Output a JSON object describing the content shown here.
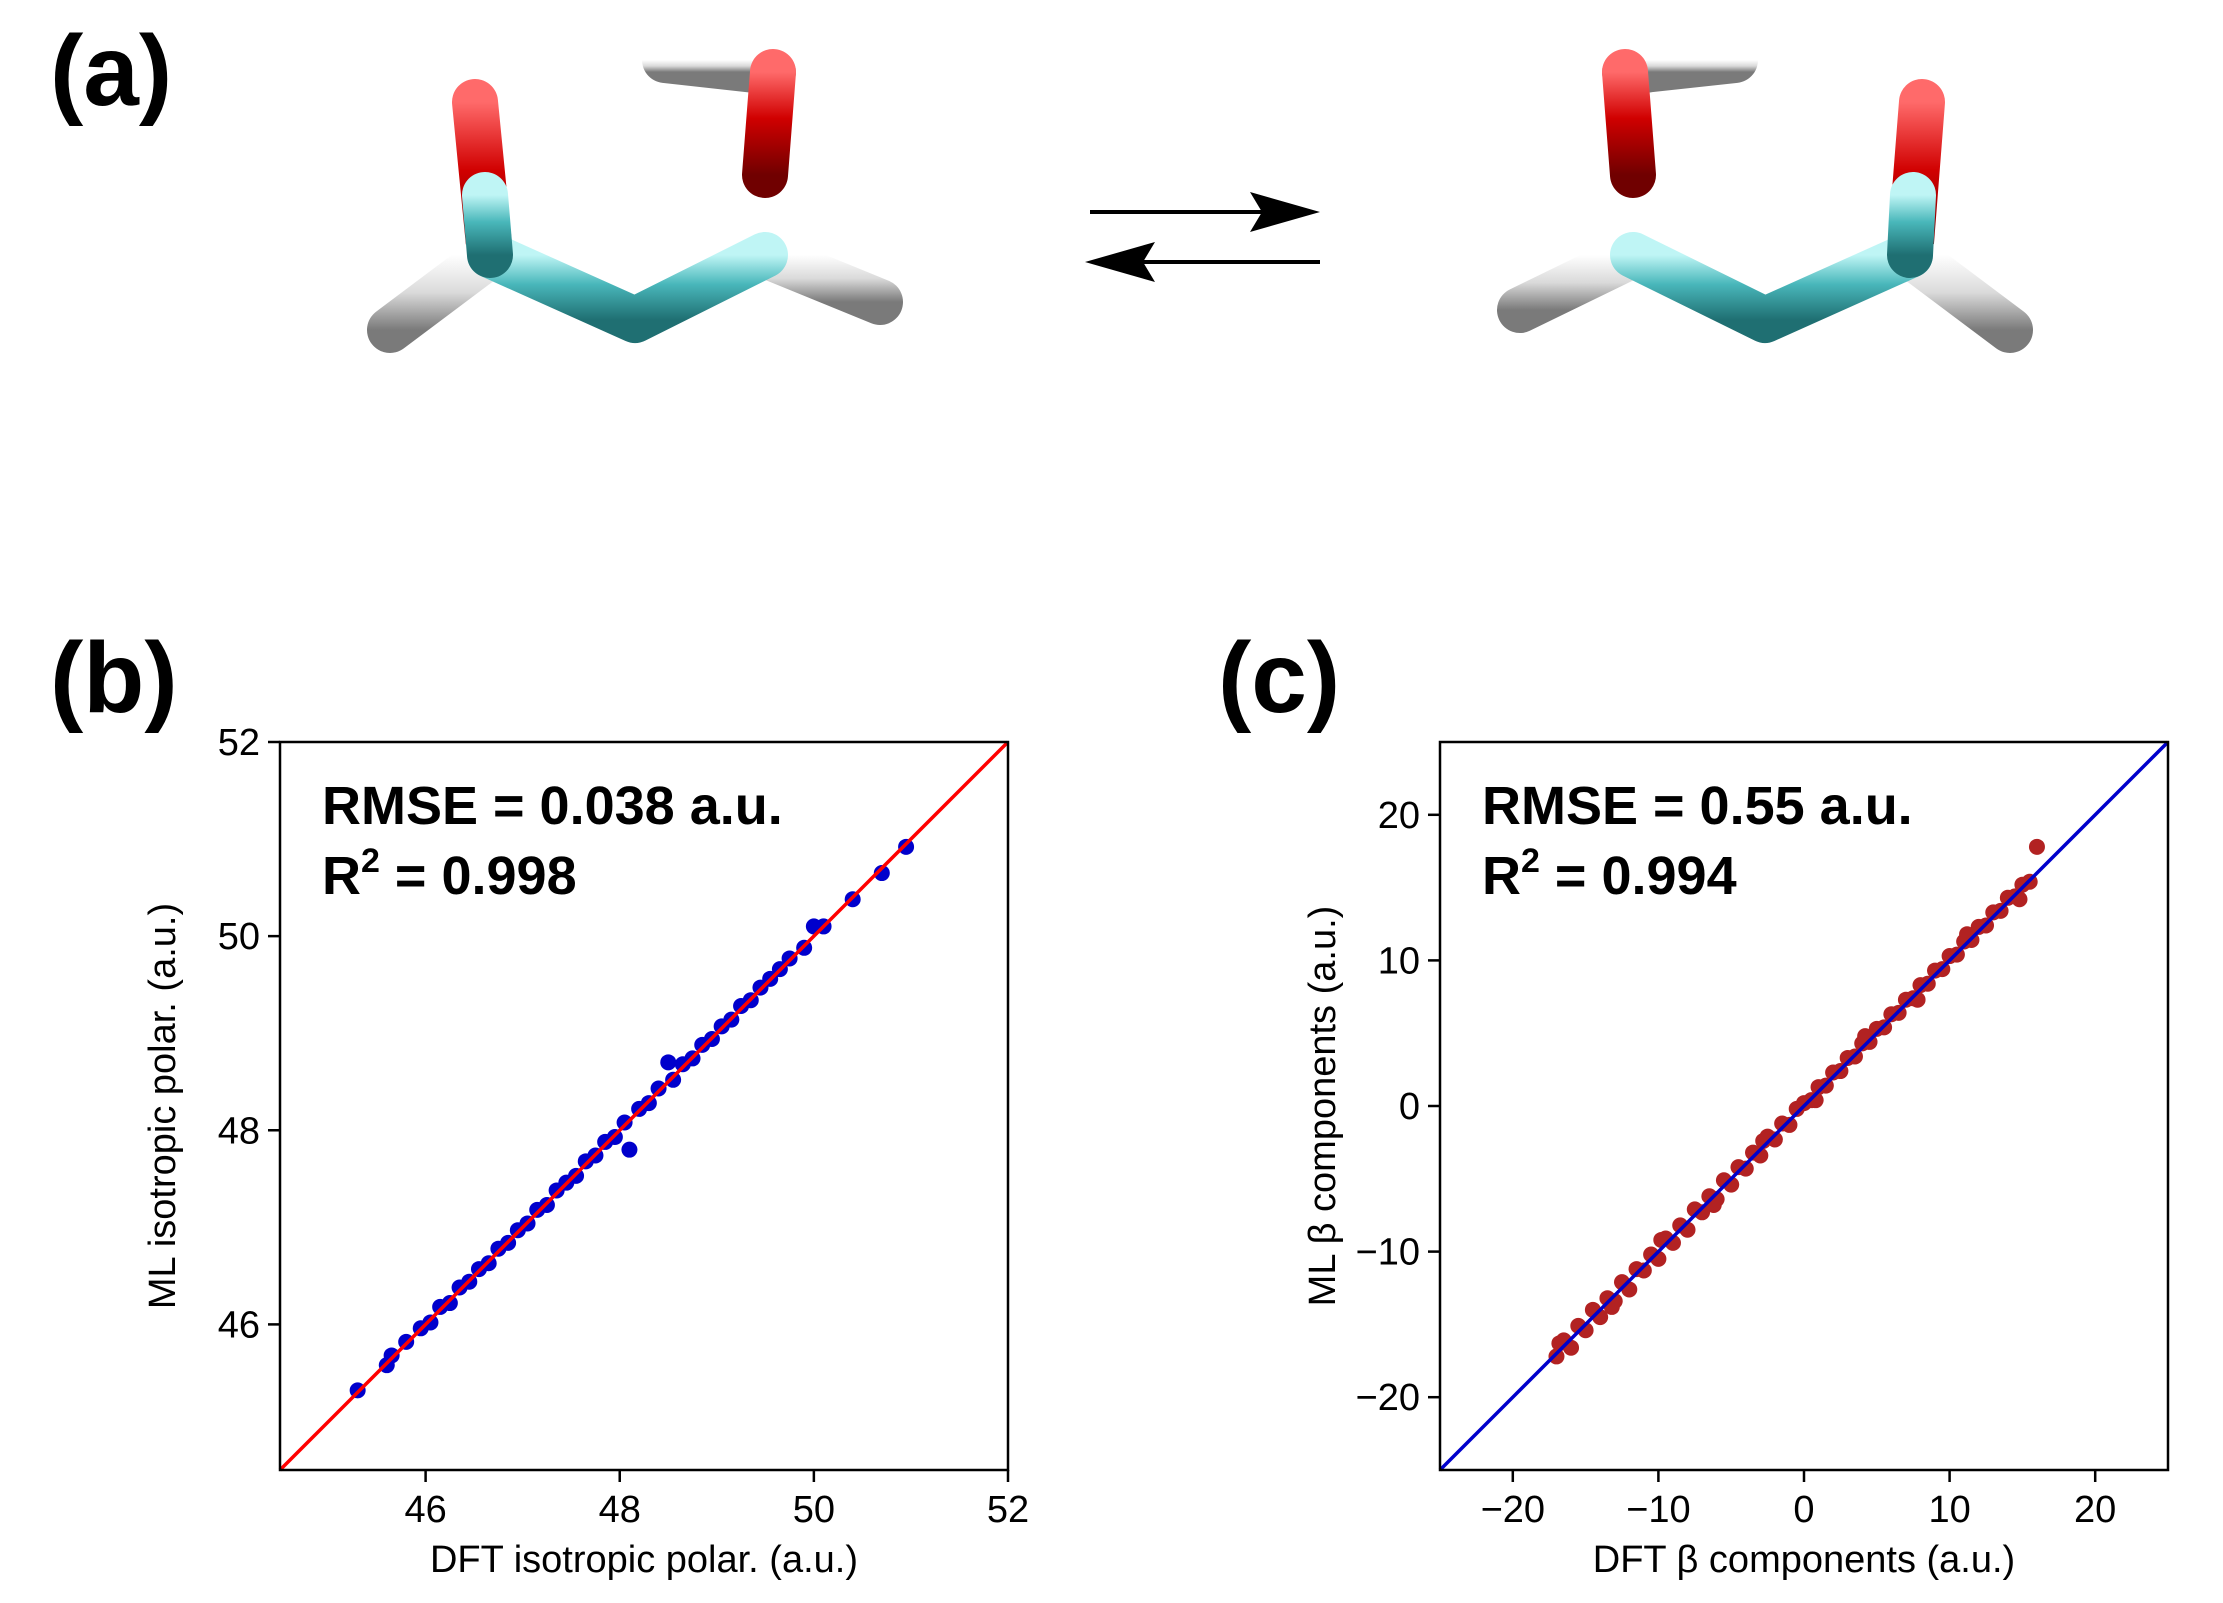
{
  "panels": {
    "a": {
      "label": "(a)"
    },
    "b": {
      "label": "(b)"
    },
    "c": {
      "label": "(c)"
    }
  },
  "molecule_colors": {
    "carbon": "#3fb3b6",
    "oxygen": "#d00000",
    "hydrogen": "#e6e6e6"
  },
  "chart_data": [
    {
      "id": "b",
      "type": "scatter",
      "xlabel": "DFT isotropic polar. (a.u.)",
      "ylabel": "ML isotropic polar. (a.u.)",
      "xlim": [
        44.5,
        52
      ],
      "ylim": [
        44.5,
        52
      ],
      "xticks": [
        46,
        48,
        50,
        52
      ],
      "yticks": [
        46,
        48,
        50,
        52
      ],
      "point_color": "#0000cc",
      "line_color": "#ff0000",
      "rmse_text": "RMSE = 0.038 a.u.",
      "r2_prefix": "R",
      "r2_sup": "2",
      "r2_suffix": " = 0.998",
      "points": [
        [
          45.3,
          45.32
        ],
        [
          45.6,
          45.58
        ],
        [
          45.65,
          45.68
        ],
        [
          45.8,
          45.82
        ],
        [
          45.95,
          45.96
        ],
        [
          46.05,
          46.02
        ],
        [
          46.15,
          46.18
        ],
        [
          46.25,
          46.22
        ],
        [
          46.35,
          46.38
        ],
        [
          46.45,
          46.44
        ],
        [
          46.55,
          46.57
        ],
        [
          46.65,
          46.63
        ],
        [
          46.75,
          46.78
        ],
        [
          46.85,
          46.84
        ],
        [
          46.95,
          46.97
        ],
        [
          47.05,
          47.04
        ],
        [
          47.15,
          47.18
        ],
        [
          47.25,
          47.23
        ],
        [
          47.35,
          47.38
        ],
        [
          47.45,
          47.46
        ],
        [
          47.55,
          47.53
        ],
        [
          47.65,
          47.68
        ],
        [
          47.75,
          47.74
        ],
        [
          47.85,
          47.88
        ],
        [
          47.95,
          47.93
        ],
        [
          48.05,
          48.08
        ],
        [
          48.1,
          47.8
        ],
        [
          48.2,
          48.22
        ],
        [
          48.3,
          48.28
        ],
        [
          48.4,
          48.43
        ],
        [
          48.5,
          48.7
        ],
        [
          48.55,
          48.52
        ],
        [
          48.65,
          48.68
        ],
        [
          48.75,
          48.74
        ],
        [
          48.85,
          48.88
        ],
        [
          48.95,
          48.94
        ],
        [
          49.05,
          49.07
        ],
        [
          49.15,
          49.14
        ],
        [
          49.25,
          49.28
        ],
        [
          49.35,
          49.34
        ],
        [
          49.45,
          49.47
        ],
        [
          49.55,
          49.56
        ],
        [
          49.65,
          49.66
        ],
        [
          49.75,
          49.77
        ],
        [
          49.9,
          49.88
        ],
        [
          50.0,
          50.1
        ],
        [
          50.1,
          50.1
        ],
        [
          50.4,
          50.38
        ],
        [
          50.7,
          50.65
        ],
        [
          50.95,
          50.92
        ]
      ]
    },
    {
      "id": "c",
      "type": "scatter",
      "xlabel": "DFT β components (a.u.)",
      "ylabel": "ML β components (a.u.)",
      "xlim": [
        -25,
        25
      ],
      "ylim": [
        -25,
        25
      ],
      "xticks": [
        -20,
        -10,
        0,
        10,
        20
      ],
      "yticks": [
        -20,
        -10,
        0,
        10,
        20
      ],
      "xtick_labels": [
        "−20",
        "−10",
        "0",
        "10",
        "20"
      ],
      "ytick_labels": [
        "−20",
        "−10",
        "0",
        "10",
        "20"
      ],
      "point_color": "#b22222",
      "line_color": "#0000cc",
      "rmse_text": "RMSE = 0.55 a.u.",
      "r2_prefix": "R",
      "r2_sup": "2",
      "r2_suffix": " = 0.994",
      "points": [
        [
          -17,
          -17.2
        ],
        [
          -16.5,
          -16.1
        ],
        [
          -16,
          -16.6
        ],
        [
          -15.5,
          -15.1
        ],
        [
          -15,
          -15.4
        ],
        [
          -14.5,
          -14.0
        ],
        [
          -14,
          -14.5
        ],
        [
          -13.5,
          -13.2
        ],
        [
          -13,
          -13.4
        ],
        [
          -12.5,
          -12.1
        ],
        [
          -12,
          -12.6
        ],
        [
          -11.5,
          -11.2
        ],
        [
          -11,
          -11.3
        ],
        [
          -10.5,
          -10.2
        ],
        [
          -10,
          -10.5
        ],
        [
          -9.5,
          -9.1
        ],
        [
          -9,
          -9.4
        ],
        [
          -8.5,
          -8.2
        ],
        [
          -8,
          -8.5
        ],
        [
          -7.5,
          -7.1
        ],
        [
          -7,
          -7.3
        ],
        [
          -6.5,
          -6.2
        ],
        [
          -6,
          -6.4
        ],
        [
          -5.5,
          -5.1
        ],
        [
          -5,
          -5.4
        ],
        [
          -4.5,
          -4.2
        ],
        [
          -4,
          -4.3
        ],
        [
          -3.5,
          -3.2
        ],
        [
          -3,
          -3.4
        ],
        [
          -2.5,
          -2.1
        ],
        [
          -2,
          -2.3
        ],
        [
          -1.5,
          -1.2
        ],
        [
          -1,
          -1.3
        ],
        [
          -0.5,
          -0.2
        ],
        [
          0,
          0.2
        ],
        [
          0.5,
          0.4
        ],
        [
          1,
          1.3
        ],
        [
          1.5,
          1.4
        ],
        [
          2,
          2.3
        ],
        [
          2.5,
          2.4
        ],
        [
          3,
          3.3
        ],
        [
          3.5,
          3.4
        ],
        [
          4,
          4.3
        ],
        [
          4.5,
          4.4
        ],
        [
          5,
          5.3
        ],
        [
          5.5,
          5.4
        ],
        [
          6,
          6.3
        ],
        [
          6.5,
          6.4
        ],
        [
          7,
          7.3
        ],
        [
          7.5,
          7.4
        ],
        [
          8,
          8.3
        ],
        [
          8.5,
          8.4
        ],
        [
          9,
          9.3
        ],
        [
          9.5,
          9.4
        ],
        [
          10,
          10.3
        ],
        [
          10.5,
          10.4
        ],
        [
          11,
          11.3
        ],
        [
          11.5,
          11.4
        ],
        [
          12,
          12.3
        ],
        [
          12.5,
          12.4
        ],
        [
          13,
          13.3
        ],
        [
          13.5,
          13.4
        ],
        [
          14,
          14.3
        ],
        [
          14.5,
          14.4
        ],
        [
          15,
          15.2
        ],
        [
          15.5,
          15.4
        ],
        [
          16,
          17.8
        ],
        [
          -16.8,
          -16.3
        ],
        [
          -13.2,
          -13.8
        ],
        [
          -9.8,
          -9.2
        ],
        [
          -6.2,
          -6.8
        ],
        [
          -2.8,
          -2.4
        ],
        [
          0.8,
          0.4
        ],
        [
          4.2,
          4.8
        ],
        [
          7.8,
          7.3
        ],
        [
          11.2,
          11.8
        ],
        [
          14.8,
          14.2
        ]
      ]
    }
  ]
}
